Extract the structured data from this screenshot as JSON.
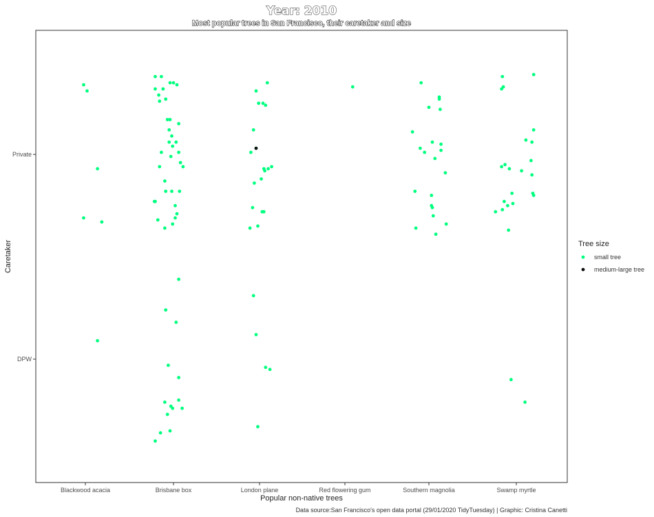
{
  "chart_data": {
    "type": "scatter",
    "title": "Year: 2010",
    "subtitle": "Most popular trees in San Francisco, their caretaker and size",
    "xlabel": "Popular non-native trees",
    "ylabel": "Caretaker",
    "caption": "Data source:San Francisco's open data portal (29/01/2020 TidyTuesday) | Graphic: Cristina Canetti",
    "categories": [
      "Blackwood acacia",
      "Brisbane box",
      "London plane",
      "Red flowering gum",
      "Southern magnolia",
      "Swamp myrtle"
    ],
    "y_categories": [
      "DPW",
      "Private"
    ],
    "jitter": "points jittered around category positions",
    "grid": false,
    "legend": {
      "title": "Tree size",
      "position": "right",
      "entries": [
        {
          "label": "small tree",
          "color": "#00ff7f"
        },
        {
          "label": "medium-large tree",
          "color": "#111111"
        }
      ]
    },
    "series": [
      {
        "name": "small tree",
        "color": "#00ff7f",
        "points": [
          {
            "x": "Blackwood acacia",
            "dx": -0.02,
            "y": "Private",
            "dy": 0.34
          },
          {
            "x": "Blackwood acacia",
            "dx": 0.02,
            "y": "Private",
            "dy": 0.31
          },
          {
            "x": "Blackwood acacia",
            "dx": 0.14,
            "y": "Private",
            "dy": -0.07
          },
          {
            "x": "Blackwood acacia",
            "dx": -0.02,
            "y": "Private",
            "dy": -0.31
          },
          {
            "x": "Blackwood acacia",
            "dx": 0.19,
            "y": "Private",
            "dy": -0.33
          },
          {
            "x": "Blackwood acacia",
            "dx": 0.14,
            "y": "DPW",
            "dy": 0.09
          },
          {
            "x": "Brisbane box",
            "dx": -0.21,
            "y": "Private",
            "dy": 0.38
          },
          {
            "x": "Brisbane box",
            "dx": -0.14,
            "y": "Private",
            "dy": 0.38
          },
          {
            "x": "Brisbane box",
            "dx": -0.21,
            "y": "Private",
            "dy": 0.32
          },
          {
            "x": "Brisbane box",
            "dx": -0.04,
            "y": "Private",
            "dy": 0.35
          },
          {
            "x": "Brisbane box",
            "dx": 0.0,
            "y": "Private",
            "dy": 0.35
          },
          {
            "x": "Brisbane box",
            "dx": 0.04,
            "y": "Private",
            "dy": 0.34
          },
          {
            "x": "Brisbane box",
            "dx": -0.12,
            "y": "Private",
            "dy": 0.32
          },
          {
            "x": "Brisbane box",
            "dx": -0.17,
            "y": "Private",
            "dy": 0.29
          },
          {
            "x": "Brisbane box",
            "dx": -0.09,
            "y": "Private",
            "dy": 0.27
          },
          {
            "x": "Brisbane box",
            "dx": -0.16,
            "y": "Private",
            "dy": 0.26
          },
          {
            "x": "Brisbane box",
            "dx": -0.04,
            "y": "Private",
            "dy": 0.17
          },
          {
            "x": "Brisbane box",
            "dx": -0.07,
            "y": "Private",
            "dy": 0.17
          },
          {
            "x": "Brisbane box",
            "dx": 0.06,
            "y": "Private",
            "dy": 0.15
          },
          {
            "x": "Brisbane box",
            "dx": -0.05,
            "y": "Private",
            "dy": 0.12
          },
          {
            "x": "Brisbane box",
            "dx": -0.02,
            "y": "Private",
            "dy": 0.09
          },
          {
            "x": "Brisbane box",
            "dx": -0.05,
            "y": "Private",
            "dy": 0.06
          },
          {
            "x": "Brisbane box",
            "dx": 0.03,
            "y": "Private",
            "dy": 0.06
          },
          {
            "x": "Brisbane box",
            "dx": -0.01,
            "y": "Private",
            "dy": 0.04
          },
          {
            "x": "Brisbane box",
            "dx": -0.14,
            "y": "Private",
            "dy": 0.01
          },
          {
            "x": "Brisbane box",
            "dx": 0.06,
            "y": "Private",
            "dy": 0.01
          },
          {
            "x": "Brisbane box",
            "dx": -0.03,
            "y": "Private",
            "dy": -0.01
          },
          {
            "x": "Brisbane box",
            "dx": 0.08,
            "y": "Private",
            "dy": -0.04
          },
          {
            "x": "Brisbane box",
            "dx": -0.16,
            "y": "Private",
            "dy": -0.06
          },
          {
            "x": "Brisbane box",
            "dx": 0.11,
            "y": "Private",
            "dy": -0.06
          },
          {
            "x": "Brisbane box",
            "dx": -0.1,
            "y": "Private",
            "dy": -0.13
          },
          {
            "x": "Brisbane box",
            "dx": -0.09,
            "y": "Private",
            "dy": -0.18
          },
          {
            "x": "Brisbane box",
            "dx": -0.02,
            "y": "Private",
            "dy": -0.18
          },
          {
            "x": "Brisbane box",
            "dx": 0.07,
            "y": "Private",
            "dy": -0.18
          },
          {
            "x": "Brisbane box",
            "dx": -0.21,
            "y": "Private",
            "dy": -0.23
          },
          {
            "x": "Brisbane box",
            "dx": -0.22,
            "y": "Private",
            "dy": -0.23
          },
          {
            "x": "Brisbane box",
            "dx": 0.02,
            "y": "Private",
            "dy": -0.25
          },
          {
            "x": "Brisbane box",
            "dx": 0.04,
            "y": "Private",
            "dy": -0.29
          },
          {
            "x": "Brisbane box",
            "dx": 0.02,
            "y": "Private",
            "dy": -0.31
          },
          {
            "x": "Brisbane box",
            "dx": -0.18,
            "y": "Private",
            "dy": -0.32
          },
          {
            "x": "Brisbane box",
            "dx": -0.01,
            "y": "Private",
            "dy": -0.34
          },
          {
            "x": "Brisbane box",
            "dx": -0.1,
            "y": "Private",
            "dy": -0.36
          },
          {
            "x": "Brisbane box",
            "dx": 0.06,
            "y": "DPW",
            "dy": 0.39
          },
          {
            "x": "Brisbane box",
            "dx": -0.09,
            "y": "DPW",
            "dy": 0.24
          },
          {
            "x": "Brisbane box",
            "dx": 0.03,
            "y": "DPW",
            "dy": 0.18
          },
          {
            "x": "Brisbane box",
            "dx": -0.06,
            "y": "DPW",
            "dy": -0.03
          },
          {
            "x": "Brisbane box",
            "dx": 0.06,
            "y": "DPW",
            "dy": -0.09
          },
          {
            "x": "Brisbane box",
            "dx": -0.1,
            "y": "DPW",
            "dy": -0.21
          },
          {
            "x": "Brisbane box",
            "dx": -0.03,
            "y": "DPW",
            "dy": -0.23
          },
          {
            "x": "Brisbane box",
            "dx": -0.01,
            "y": "DPW",
            "dy": -0.24
          },
          {
            "x": "Brisbane box",
            "dx": 0.06,
            "y": "DPW",
            "dy": -0.2
          },
          {
            "x": "Brisbane box",
            "dx": 0.1,
            "y": "DPW",
            "dy": -0.24
          },
          {
            "x": "Brisbane box",
            "dx": -0.07,
            "y": "DPW",
            "dy": -0.27
          },
          {
            "x": "Brisbane box",
            "dx": -0.04,
            "y": "DPW",
            "dy": -0.35
          },
          {
            "x": "Brisbane box",
            "dx": -0.15,
            "y": "DPW",
            "dy": -0.36
          },
          {
            "x": "Brisbane box",
            "dx": -0.21,
            "y": "DPW",
            "dy": -0.4
          },
          {
            "x": "London plane",
            "dx": -0.04,
            "y": "Private",
            "dy": 0.31
          },
          {
            "x": "London plane",
            "dx": 0.09,
            "y": "Private",
            "dy": 0.35
          },
          {
            "x": "London plane",
            "dx": -0.01,
            "y": "Private",
            "dy": 0.25
          },
          {
            "x": "London plane",
            "dx": 0.04,
            "y": "Private",
            "dy": 0.25
          },
          {
            "x": "London plane",
            "dx": 0.07,
            "y": "Private",
            "dy": 0.24
          },
          {
            "x": "London plane",
            "dx": -0.07,
            "y": "Private",
            "dy": 0.12
          },
          {
            "x": "London plane",
            "dx": -0.04,
            "y": "Private",
            "dy": 0.03
          },
          {
            "x": "London plane",
            "dx": -0.1,
            "y": "Private",
            "dy": 0.01
          },
          {
            "x": "London plane",
            "dx": 0.05,
            "y": "Private",
            "dy": -0.07
          },
          {
            "x": "London plane",
            "dx": 0.1,
            "y": "Private",
            "dy": -0.07
          },
          {
            "x": "London plane",
            "dx": 0.14,
            "y": "Private",
            "dy": -0.06
          },
          {
            "x": "London plane",
            "dx": 0.06,
            "y": "Private",
            "dy": -0.08
          },
          {
            "x": "London plane",
            "dx": 0.02,
            "y": "Private",
            "dy": -0.12
          },
          {
            "x": "London plane",
            "dx": -0.06,
            "y": "Private",
            "dy": -0.14
          },
          {
            "x": "London plane",
            "dx": -0.08,
            "y": "Private",
            "dy": -0.26
          },
          {
            "x": "London plane",
            "dx": 0.03,
            "y": "Private",
            "dy": -0.28
          },
          {
            "x": "London plane",
            "dx": 0.05,
            "y": "Private",
            "dy": -0.28
          },
          {
            "x": "London plane",
            "dx": -0.11,
            "y": "Private",
            "dy": -0.36
          },
          {
            "x": "London plane",
            "dx": -0.02,
            "y": "Private",
            "dy": -0.35
          },
          {
            "x": "London plane",
            "dx": -0.07,
            "y": "DPW",
            "dy": 0.31
          },
          {
            "x": "London plane",
            "dx": -0.04,
            "y": "DPW",
            "dy": 0.12
          },
          {
            "x": "London plane",
            "dx": 0.07,
            "y": "DPW",
            "dy": -0.04
          },
          {
            "x": "London plane",
            "dx": 0.12,
            "y": "DPW",
            "dy": -0.05
          },
          {
            "x": "London plane",
            "dx": -0.02,
            "y": "DPW",
            "dy": -0.33
          },
          {
            "x": "Red flowering gum",
            "dx": 0.09,
            "y": "Private",
            "dy": 0.33
          },
          {
            "x": "Southern magnolia",
            "dx": -0.09,
            "y": "Private",
            "dy": 0.35
          },
          {
            "x": "Southern magnolia",
            "dx": 0.12,
            "y": "Private",
            "dy": 0.28
          },
          {
            "x": "Southern magnolia",
            "dx": 0.12,
            "y": "Private",
            "dy": 0.27
          },
          {
            "x": "Southern magnolia",
            "dx": 0.0,
            "y": "Private",
            "dy": 0.23
          },
          {
            "x": "Southern magnolia",
            "dx": 0.13,
            "y": "Private",
            "dy": 0.22
          },
          {
            "x": "Southern magnolia",
            "dx": -0.19,
            "y": "Private",
            "dy": 0.11
          },
          {
            "x": "Southern magnolia",
            "dx": 0.04,
            "y": "Private",
            "dy": 0.06
          },
          {
            "x": "Southern magnolia",
            "dx": 0.14,
            "y": "Private",
            "dy": 0.05
          },
          {
            "x": "Southern magnolia",
            "dx": -0.1,
            "y": "Private",
            "dy": 0.03
          },
          {
            "x": "Southern magnolia",
            "dx": -0.05,
            "y": "Private",
            "dy": 0.01
          },
          {
            "x": "Southern magnolia",
            "dx": 0.14,
            "y": "Private",
            "dy": 0.02
          },
          {
            "x": "Southern magnolia",
            "dx": 0.07,
            "y": "Private",
            "dy": -0.02
          },
          {
            "x": "Southern magnolia",
            "dx": 0.19,
            "y": "Private",
            "dy": -0.09
          },
          {
            "x": "Southern magnolia",
            "dx": -0.16,
            "y": "Private",
            "dy": -0.18
          },
          {
            "x": "Southern magnolia",
            "dx": 0.03,
            "y": "Private",
            "dy": -0.2
          },
          {
            "x": "Southern magnolia",
            "dx": 0.03,
            "y": "Private",
            "dy": -0.25
          },
          {
            "x": "Southern magnolia",
            "dx": 0.04,
            "y": "Private",
            "dy": -0.26
          },
          {
            "x": "Southern magnolia",
            "dx": 0.05,
            "y": "Private",
            "dy": -0.3
          },
          {
            "x": "Southern magnolia",
            "dx": -0.15,
            "y": "Private",
            "dy": -0.36
          },
          {
            "x": "Southern magnolia",
            "dx": 0.2,
            "y": "Private",
            "dy": -0.34
          },
          {
            "x": "Southern magnolia",
            "dx": 0.08,
            "y": "Private",
            "dy": -0.39
          },
          {
            "x": "Swamp myrtle",
            "dx": -0.16,
            "y": "Private",
            "dy": 0.38
          },
          {
            "x": "Swamp myrtle",
            "dx": 0.2,
            "y": "Private",
            "dy": 0.39
          },
          {
            "x": "Swamp myrtle",
            "dx": -0.15,
            "y": "Private",
            "dy": 0.33
          },
          {
            "x": "Swamp myrtle",
            "dx": -0.17,
            "y": "Private",
            "dy": 0.32
          },
          {
            "x": "Swamp myrtle",
            "dx": 0.2,
            "y": "Private",
            "dy": 0.12
          },
          {
            "x": "Swamp myrtle",
            "dx": 0.11,
            "y": "Private",
            "dy": 0.07
          },
          {
            "x": "Swamp myrtle",
            "dx": 0.18,
            "y": "Private",
            "dy": 0.06
          },
          {
            "x": "Swamp myrtle",
            "dx": 0.17,
            "y": "Private",
            "dy": -0.03
          },
          {
            "x": "Swamp myrtle",
            "dx": -0.13,
            "y": "Private",
            "dy": -0.05
          },
          {
            "x": "Swamp myrtle",
            "dx": -0.17,
            "y": "Private",
            "dy": -0.06
          },
          {
            "x": "Swamp myrtle",
            "dx": -0.08,
            "y": "Private",
            "dy": -0.07
          },
          {
            "x": "Swamp myrtle",
            "dx": 0.06,
            "y": "Private",
            "dy": -0.08
          },
          {
            "x": "Swamp myrtle",
            "dx": 0.18,
            "y": "Private",
            "dy": -0.1
          },
          {
            "x": "Swamp myrtle",
            "dx": -0.05,
            "y": "Private",
            "dy": -0.19
          },
          {
            "x": "Swamp myrtle",
            "dx": 0.19,
            "y": "Private",
            "dy": -0.19
          },
          {
            "x": "Swamp myrtle",
            "dx": 0.2,
            "y": "Private",
            "dy": -0.2
          },
          {
            "x": "Swamp myrtle",
            "dx": -0.14,
            "y": "Private",
            "dy": -0.23
          },
          {
            "x": "Swamp myrtle",
            "dx": -0.1,
            "y": "Private",
            "dy": -0.25
          },
          {
            "x": "Swamp myrtle",
            "dx": -0.04,
            "y": "Private",
            "dy": -0.24
          },
          {
            "x": "Swamp myrtle",
            "dx": -0.16,
            "y": "Private",
            "dy": -0.27
          },
          {
            "x": "Swamp myrtle",
            "dx": -0.24,
            "y": "Private",
            "dy": -0.28
          },
          {
            "x": "Swamp myrtle",
            "dx": -0.09,
            "y": "Private",
            "dy": -0.37
          },
          {
            "x": "Swamp myrtle",
            "dx": -0.06,
            "y": "DPW",
            "dy": -0.1
          },
          {
            "x": "Swamp myrtle",
            "dx": 0.1,
            "y": "DPW",
            "dy": -0.21
          }
        ]
      },
      {
        "name": "medium-large tree",
        "color": "#111111",
        "points": [
          {
            "x": "London plane",
            "dx": -0.04,
            "y": "Private",
            "dy": 0.03
          }
        ]
      }
    ]
  }
}
